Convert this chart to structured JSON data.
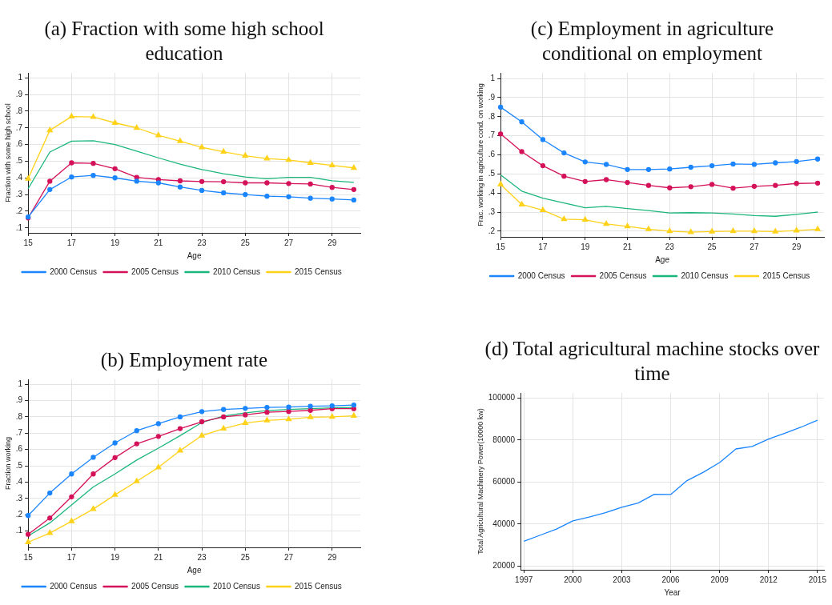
{
  "chart_data": [
    {
      "type": "line",
      "title": "(a) Fraction with some high school education",
      "xlabel": "Age",
      "ylabel": "Fraction with some high school",
      "x": [
        15,
        16,
        17,
        18,
        19,
        20,
        21,
        22,
        23,
        24,
        25,
        26,
        27,
        28,
        29,
        30
      ],
      "xlim": [
        15,
        30.3
      ],
      "xticks": [
        15,
        17,
        19,
        21,
        23,
        25,
        27,
        29
      ],
      "ylim": [
        0.07,
        1.03
      ],
      "yticks": [
        {
          "value": 0.1,
          "label": ".1"
        },
        {
          "value": 0.2,
          "label": ".2"
        },
        {
          "value": 0.3,
          "label": ".3"
        },
        {
          "value": 0.4,
          "label": ".4"
        },
        {
          "value": 0.5,
          "label": ".5"
        },
        {
          "value": 0.6,
          "label": ".6"
        },
        {
          "value": 0.7,
          "label": ".7"
        },
        {
          "value": 0.8,
          "label": ".8"
        },
        {
          "value": 0.9,
          "label": ".9"
        },
        1
      ],
      "grid": true,
      "legend": "bottom",
      "series": [
        {
          "name": "2000 Census",
          "color": "#1a85ff",
          "marker": "circle",
          "values": [
            0.165,
            0.33,
            0.405,
            0.415,
            0.4,
            0.38,
            0.37,
            0.345,
            0.325,
            0.31,
            0.3,
            0.29,
            0.287,
            0.278,
            0.273,
            0.267
          ]
        },
        {
          "name": "2005 Census",
          "color": "#d41159",
          "marker": "circle",
          "values": [
            0.16,
            0.38,
            0.49,
            0.487,
            0.455,
            0.403,
            0.39,
            0.382,
            0.378,
            0.377,
            0.37,
            0.37,
            0.366,
            0.363,
            0.343,
            0.33
          ]
        },
        {
          "name": "2010 Census",
          "color": "#1bb67c",
          "marker": "none",
          "values": [
            0.335,
            0.555,
            0.62,
            0.623,
            0.6,
            0.56,
            0.52,
            0.482,
            0.45,
            0.425,
            0.405,
            0.395,
            0.403,
            0.403,
            0.383,
            0.373
          ]
        },
        {
          "name": "2015 Census",
          "color": "#ffd21a",
          "marker": "triangle",
          "values": [
            0.395,
            0.685,
            0.768,
            0.765,
            0.73,
            0.7,
            0.655,
            0.62,
            0.583,
            0.557,
            0.533,
            0.516,
            0.507,
            0.49,
            0.475,
            0.46
          ]
        }
      ]
    },
    {
      "type": "line",
      "title": "(c) Employment in agriculture conditional on employment",
      "xlabel": "Age",
      "ylabel": "Frac. working in agriculture cond. on working",
      "x": [
        15,
        16,
        17,
        18,
        19,
        20,
        21,
        22,
        23,
        24,
        25,
        26,
        27,
        28,
        29,
        30
      ],
      "xlim": [
        15,
        30.3
      ],
      "xticks": [
        15,
        17,
        19,
        21,
        23,
        25,
        27,
        29
      ],
      "ylim": [
        0.17,
        1.03
      ],
      "yticks": [
        {
          "value": 0.2,
          "label": ".2"
        },
        {
          "value": 0.3,
          "label": ".3"
        },
        {
          "value": 0.4,
          "label": ".4"
        },
        {
          "value": 0.5,
          "label": ".5"
        },
        {
          "value": 0.6,
          "label": ".6"
        },
        {
          "value": 0.7,
          "label": ".7"
        },
        {
          "value": 0.8,
          "label": ".8"
        },
        {
          "value": 0.9,
          "label": ".9"
        },
        1
      ],
      "grid": true,
      "legend": "bottom",
      "series": [
        {
          "name": "2000 Census",
          "color": "#1a85ff",
          "marker": "circle",
          "values": [
            0.85,
            0.773,
            0.68,
            0.61,
            0.563,
            0.55,
            0.523,
            0.523,
            0.526,
            0.535,
            0.543,
            0.552,
            0.55,
            0.558,
            0.565,
            0.578
          ]
        },
        {
          "name": "2005 Census",
          "color": "#d41159",
          "marker": "circle",
          "values": [
            0.71,
            0.617,
            0.543,
            0.488,
            0.46,
            0.47,
            0.455,
            0.44,
            0.427,
            0.433,
            0.445,
            0.425,
            0.435,
            0.44,
            0.45,
            0.452
          ]
        },
        {
          "name": "2010 Census",
          "color": "#1bb67c",
          "marker": "none",
          "values": [
            0.495,
            0.41,
            0.373,
            0.348,
            0.323,
            0.33,
            0.318,
            0.308,
            0.295,
            0.297,
            0.295,
            0.29,
            0.282,
            0.278,
            0.288,
            0.3
          ]
        },
        {
          "name": "2015 Census",
          "color": "#ffd21a",
          "marker": "triangle",
          "values": [
            0.445,
            0.34,
            0.31,
            0.263,
            0.26,
            0.238,
            0.225,
            0.21,
            0.2,
            0.195,
            0.198,
            0.2,
            0.2,
            0.198,
            0.203,
            0.21
          ]
        }
      ]
    },
    {
      "type": "line",
      "title": "(b) Employment rate",
      "xlabel": "Age",
      "ylabel": "Fraction working",
      "x": [
        15,
        16,
        17,
        18,
        19,
        20,
        21,
        22,
        23,
        24,
        25,
        26,
        27,
        28,
        29,
        30
      ],
      "xlim": [
        15,
        30.3
      ],
      "xticks": [
        15,
        17,
        19,
        21,
        23,
        25,
        27,
        29
      ],
      "ylim": [
        0,
        1.03
      ],
      "yticks": [
        {
          "value": 0.1,
          "label": ".1"
        },
        {
          "value": 0.2,
          "label": ".2"
        },
        {
          "value": 0.3,
          "label": ".3"
        },
        {
          "value": 0.4,
          "label": ".4"
        },
        {
          "value": 0.5,
          "label": ".5"
        },
        {
          "value": 0.6,
          "label": ".6"
        },
        {
          "value": 0.7,
          "label": ".7"
        },
        {
          "value": 0.8,
          "label": ".8"
        },
        {
          "value": 0.9,
          "label": ".9"
        },
        1
      ],
      "grid": true,
      "legend": "bottom",
      "series": [
        {
          "name": "2000 Census",
          "color": "#1a85ff",
          "marker": "circle",
          "values": [
            0.195,
            0.333,
            0.45,
            0.552,
            0.64,
            0.715,
            0.758,
            0.8,
            0.832,
            0.845,
            0.852,
            0.858,
            0.86,
            0.865,
            0.868,
            0.872
          ]
        },
        {
          "name": "2005 Census",
          "color": "#d41159",
          "marker": "circle",
          "values": [
            0.08,
            0.18,
            0.31,
            0.45,
            0.55,
            0.635,
            0.68,
            0.728,
            0.77,
            0.8,
            0.812,
            0.828,
            0.833,
            0.84,
            0.85,
            0.85
          ]
        },
        {
          "name": "2010 Census",
          "color": "#1bb67c",
          "marker": "none",
          "values": [
            0.07,
            0.15,
            0.26,
            0.37,
            0.45,
            0.535,
            0.608,
            0.685,
            0.765,
            0.805,
            0.825,
            0.838,
            0.845,
            0.85,
            0.855,
            0.858
          ]
        },
        {
          "name": "2015 Census",
          "color": "#ffd21a",
          "marker": "triangle",
          "values": [
            0.032,
            0.088,
            0.16,
            0.235,
            0.322,
            0.405,
            0.49,
            0.593,
            0.685,
            0.728,
            0.762,
            0.778,
            0.785,
            0.798,
            0.8,
            0.806
          ]
        }
      ]
    },
    {
      "type": "line",
      "title": "(d) Total agricultural machine stocks over time",
      "xlabel": "Year",
      "ylabel": "Total Agricultural Machinery Power(10000 kw)",
      "x": [
        1997,
        1998,
        1999,
        2000,
        2001,
        2002,
        2003,
        2004,
        2005,
        2006,
        2007,
        2008,
        2009,
        2010,
        2011,
        2012,
        2013,
        2014,
        2015
      ],
      "xlim": [
        1996.8,
        2015.4
      ],
      "xticks": [
        1997,
        2000,
        2003,
        2006,
        2009,
        2012,
        2015
      ],
      "ylim": [
        18200,
        102500
      ],
      "yticks": [
        20000,
        40000,
        60000,
        80000,
        100000
      ],
      "grid": true,
      "legend": false,
      "series": [
        {
          "color": "#1a85ff",
          "marker": "none",
          "values": [
            31800,
            34700,
            37600,
            41500,
            43300,
            45400,
            48000,
            50000,
            54200,
            54100,
            60700,
            64700,
            69300,
            75800,
            77000,
            80500,
            83300,
            86200,
            89500
          ]
        }
      ]
    }
  ]
}
